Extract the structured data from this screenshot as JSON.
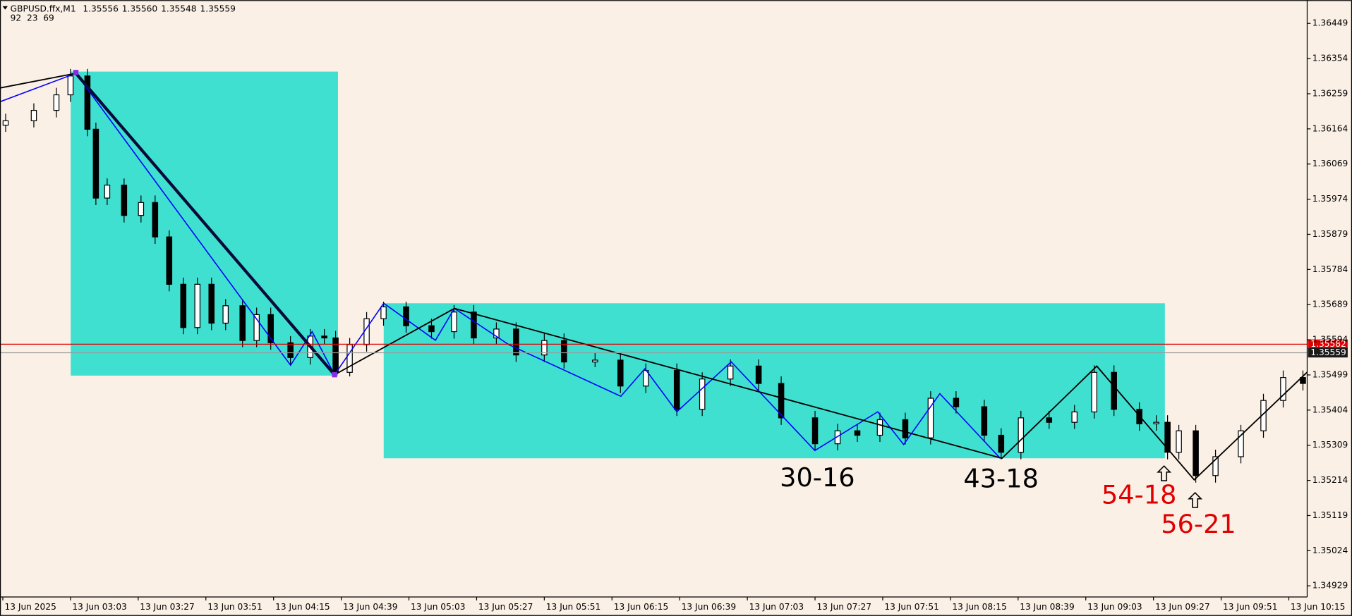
{
  "chart_data": {
    "type": "candlestick",
    "title": "GBPUSD.ffx,M1",
    "header_values": [
      "1.35556",
      "1.35560",
      "1.35548",
      "1.35559"
    ],
    "subtitle": "92  23  69",
    "x": [
      160,
      170,
      178,
      183,
      189,
      192,
      196,
      202,
      208,
      213,
      218,
      223,
      228,
      233,
      238,
      244,
      249,
      254,
      261,
      268,
      273,
      277,
      282,
      288,
      294,
      302,
      311,
      319,
      326,
      334,
      341,
      351,
      358,
      369,
      378,
      387,
      398,
      407,
      417,
      427,
      435,
      447,
      455,
      462,
      470,
      479,
      488,
      497,
      507,
      513,
      520,
      530,
      539,
      546,
      553,
      562,
      568,
      572,
      576,
      582,
      589,
      598,
      606,
      613,
      620
    ],
    "open": [
      1.36174,
      1.36186,
      1.36214,
      1.36256,
      1.36307,
      1.36163,
      1.35977,
      1.36012,
      1.3593,
      1.35965,
      1.35872,
      1.35744,
      1.35627,
      1.35744,
      1.35639,
      1.35686,
      1.35592,
      1.35662,
      1.35586,
      1.35546,
      1.35604,
      1.35599,
      1.35506,
      1.35581,
      1.35651,
      1.35683,
      1.35632,
      1.35616,
      1.35669,
      1.35599,
      1.35623,
      1.35553,
      1.35592,
      1.35534,
      1.35539,
      1.35469,
      1.35511,
      1.35406,
      1.35488,
      1.35523,
      1.35476,
      1.35383,
      1.35313,
      1.35348,
      1.35336,
      1.35378,
      1.35329,
      1.35436,
      1.35413,
      1.35336,
      1.3529,
      1.35383,
      1.35371,
      1.35399,
      1.35506,
      1.35406,
      1.35367,
      1.35371,
      1.3529,
      1.35348,
      1.35227,
      1.35278,
      1.35348,
      1.3543,
      1.35492
    ],
    "high": [
      1.36205,
      1.36233,
      1.36275,
      1.36326,
      1.36326,
      1.36181,
      1.3603,
      1.3603,
      1.35984,
      1.35984,
      1.3589,
      1.35762,
      1.35762,
      1.35762,
      1.35704,
      1.35704,
      1.35681,
      1.35681,
      1.35604,
      1.35623,
      1.35623,
      1.35618,
      1.35599,
      1.35669,
      1.35697,
      1.35697,
      1.35651,
      1.35688,
      1.35688,
      1.35641,
      1.35641,
      1.35611,
      1.35611,
      1.35558,
      1.35558,
      1.3553,
      1.3553,
      1.35506,
      1.35541,
      1.35541,
      1.35495,
      1.35402,
      1.35367,
      1.35367,
      1.35397,
      1.35397,
      1.35455,
      1.35455,
      1.35432,
      1.35355,
      1.35402,
      1.35402,
      1.35418,
      1.35525,
      1.35525,
      1.35425,
      1.3539,
      1.3539,
      1.35364,
      1.35364,
      1.35297,
      1.35364,
      1.35448,
      1.35511,
      1.35511
    ],
    "low": [
      1.36156,
      1.36168,
      1.36195,
      1.36237,
      1.36144,
      1.35958,
      1.35958,
      1.35911,
      1.35911,
      1.35853,
      1.35725,
      1.35609,
      1.35609,
      1.3562,
      1.3562,
      1.35574,
      1.35574,
      1.35567,
      1.35527,
      1.35527,
      1.35581,
      1.35495,
      1.35495,
      1.35562,
      1.35632,
      1.35613,
      1.35597,
      1.35597,
      1.35581,
      1.35581,
      1.35534,
      1.35534,
      1.35516,
      1.3552,
      1.3545,
      1.3545,
      1.35388,
      1.35388,
      1.35469,
      1.35457,
      1.35364,
      1.35295,
      1.35295,
      1.35318,
      1.35318,
      1.35311,
      1.35311,
      1.35395,
      1.35318,
      1.35271,
      1.35271,
      1.35353,
      1.35353,
      1.35381,
      1.35388,
      1.35348,
      1.35348,
      1.35271,
      1.35271,
      1.35208,
      1.35208,
      1.3526,
      1.35329,
      1.35411,
      1.35457
    ],
    "close": [
      1.36186,
      1.36214,
      1.36256,
      1.36307,
      1.36163,
      1.35977,
      1.36012,
      1.3593,
      1.35965,
      1.35872,
      1.35744,
      1.35627,
      1.35744,
      1.35639,
      1.35686,
      1.35592,
      1.35662,
      1.35586,
      1.35546,
      1.35604,
      1.35599,
      1.35506,
      1.35581,
      1.35651,
      1.35683,
      1.35632,
      1.35616,
      1.35669,
      1.35599,
      1.35623,
      1.35553,
      1.35592,
      1.35534,
      1.35539,
      1.35469,
      1.35511,
      1.35406,
      1.35488,
      1.35523,
      1.35476,
      1.35383,
      1.35313,
      1.35348,
      1.35336,
      1.35378,
      1.35329,
      1.35436,
      1.35413,
      1.35336,
      1.3529,
      1.35383,
      1.35371,
      1.35399,
      1.35506,
      1.35406,
      1.35367,
      1.35371,
      1.3529,
      1.35348,
      1.35227,
      1.35278,
      1.35348,
      1.3543,
      1.35492,
      1.35476
    ],
    "bull_color": "#ffffff",
    "bear_color": "#000000",
    "wick_color": "#000000",
    "xlim": [
      158,
      621.5
    ],
    "ylim": [
      1.34899,
      1.36512
    ],
    "xticks": [
      {
        "value": 159,
        "label": "13 Jun 2025"
      },
      {
        "value": 183,
        "label": "13 Jun 03:03"
      },
      {
        "value": 207,
        "label": "13 Jun 03:27"
      },
      {
        "value": 231,
        "label": "13 Jun 03:51"
      },
      {
        "value": 255,
        "label": "13 Jun 04:15"
      },
      {
        "value": 279,
        "label": "13 Jun 04:39"
      },
      {
        "value": 303,
        "label": "13 Jun 05:03"
      },
      {
        "value": 327,
        "label": "13 Jun 05:27"
      },
      {
        "value": 351,
        "label": "13 Jun 05:51"
      },
      {
        "value": 375,
        "label": "13 Jun 06:15"
      },
      {
        "value": 399,
        "label": "13 Jun 06:39"
      },
      {
        "value": 423,
        "label": "13 Jun 07:03"
      },
      {
        "value": 447,
        "label": "13 Jun 07:27"
      },
      {
        "value": 471,
        "label": "13 Jun 07:51"
      },
      {
        "value": 495,
        "label": "13 Jun 08:15"
      },
      {
        "value": 519,
        "label": "13 Jun 08:39"
      },
      {
        "value": 543,
        "label": "13 Jun 09:03"
      },
      {
        "value": 567,
        "label": "13 Jun 09:27"
      },
      {
        "value": 591,
        "label": "13 Jun 09:51"
      },
      {
        "value": 615,
        "label": "13 Jun 10:15"
      }
    ],
    "yticks": [
      1.36449,
      1.36354,
      1.36259,
      1.36164,
      1.36069,
      1.35974,
      1.35879,
      1.35784,
      1.35689,
      1.35594,
      1.35499,
      1.35404,
      1.35309,
      1.35214,
      1.35119,
      1.35024,
      1.34929
    ],
    "price_lines": [
      {
        "value": 1.35582,
        "color": "#e00000",
        "tag_color": "#e00000"
      },
      {
        "value": 1.35559,
        "color": "#9a9a9a",
        "tag_color": "#1a1a1a"
      }
    ],
    "annotations": [
      {
        "text": "30-16",
        "color": "#000000"
      },
      {
        "text": "43-18",
        "color": "#000000"
      },
      {
        "text": "54-18",
        "color": "#e00000"
      },
      {
        "text": "56-21",
        "color": "#e00000"
      }
    ]
  }
}
